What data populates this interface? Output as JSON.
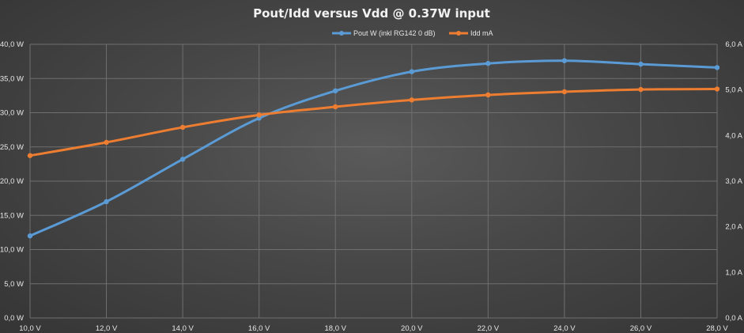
{
  "chart_data": {
    "type": "line",
    "title": "Pout/Idd versus Vdd @ 0.37W input",
    "x": [
      10,
      12,
      14,
      16,
      18,
      20,
      22,
      24,
      26,
      28
    ],
    "x_ticks": [
      "10,0 V",
      "12,0 V",
      "14,0 V",
      "16,0 V",
      "18,0 V",
      "20,0 V",
      "22,0 V",
      "24,0 V",
      "26,0 V",
      "28,0 V"
    ],
    "y_left_ticks": [
      "0,0 W",
      "5,0 W",
      "10,0 W",
      "15,0 W",
      "20,0 W",
      "25,0 W",
      "30,0 W",
      "35,0 W",
      "40,0 W"
    ],
    "y_right_ticks": [
      "0,0 A",
      "1,0 A",
      "2,0 A",
      "3,0 A",
      "4,0 A",
      "5,0 A",
      "6,0 A"
    ],
    "ylim_left": [
      0,
      40
    ],
    "ylim_right": [
      0,
      6
    ],
    "xlim": [
      10,
      28
    ],
    "grid": true,
    "legend_position": "top",
    "series": [
      {
        "name": "Pout W (inkl RG142 0 dB)",
        "axis": "left",
        "color": "#5b9bd5",
        "values": [
          12.0,
          17.0,
          23.2,
          29.2,
          33.2,
          36.0,
          37.2,
          37.6,
          37.1,
          36.6
        ]
      },
      {
        "name": "Idd mA",
        "axis": "right",
        "color": "#ed7d31",
        "values": [
          3.56,
          3.85,
          4.18,
          4.45,
          4.63,
          4.78,
          4.89,
          4.96,
          5.01,
          5.02
        ]
      }
    ]
  }
}
